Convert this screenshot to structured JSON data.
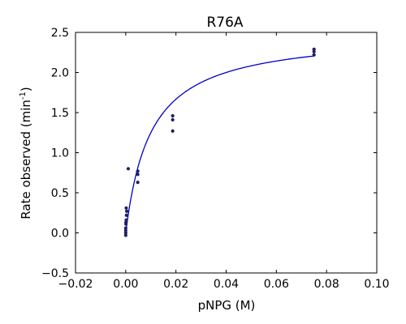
{
  "chart_data": {
    "type": "scatter",
    "title": "R76A",
    "xlabel": "pNPG (M)",
    "ylabel": {
      "prefix": "Rate observed (min",
      "superscript": "-1",
      "suffix": ")"
    },
    "xlim": [
      -0.02,
      0.1
    ],
    "ylim": [
      -0.5,
      2.5
    ],
    "x_ticks": [
      -0.02,
      0.0,
      0.02,
      0.04,
      0.06,
      0.08,
      0.1
    ],
    "x_tick_labels": [
      "−0.02",
      "0.00",
      "0.02",
      "0.04",
      "0.06",
      "0.08",
      "0.10"
    ],
    "y_ticks": [
      -0.5,
      0.0,
      0.5,
      1.0,
      1.5,
      2.0,
      2.5
    ],
    "y_tick_labels": [
      "−0.5",
      "0.0",
      "0.5",
      "1.0",
      "1.5",
      "2.0",
      "2.5"
    ],
    "grid": false,
    "colors": {
      "points": "#1f1f66",
      "fit_line": "#0000cc",
      "axes": "#000000"
    },
    "points": [
      {
        "x": 0.0,
        "y": -0.03
      },
      {
        "x": 0.0,
        "y": 0.0
      },
      {
        "x": 0.0,
        "y": 0.03
      },
      {
        "x": 0.0,
        "y": 0.06
      },
      {
        "x": 0.0001,
        "y": 0.11
      },
      {
        "x": 0.0001,
        "y": 0.13
      },
      {
        "x": 0.0002,
        "y": 0.16
      },
      {
        "x": 0.0003,
        "y": 0.22
      },
      {
        "x": 0.0004,
        "y": 0.27
      },
      {
        "x": 0.0002,
        "y": 0.31
      },
      {
        "x": 0.001,
        "y": 0.8
      },
      {
        "x": 0.0048,
        "y": 0.63
      },
      {
        "x": 0.0048,
        "y": 0.73
      },
      {
        "x": 0.0048,
        "y": 0.77
      },
      {
        "x": 0.0187,
        "y": 1.27
      },
      {
        "x": 0.0187,
        "y": 1.41
      },
      {
        "x": 0.0187,
        "y": 1.46
      },
      {
        "x": 0.075,
        "y": 2.22
      },
      {
        "x": 0.075,
        "y": 2.26
      },
      {
        "x": 0.075,
        "y": 2.29
      }
    ],
    "fit": {
      "type": "michaelis-menten",
      "vmax": 2.5,
      "km": 0.01,
      "x_range": [
        0.0,
        0.075
      ]
    }
  }
}
